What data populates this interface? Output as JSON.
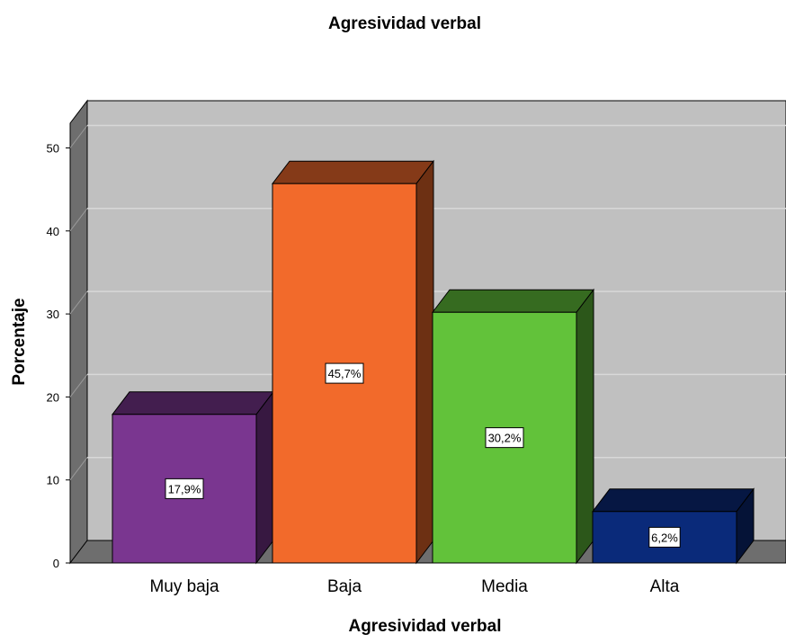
{
  "chart_data": {
    "type": "bar",
    "title": "Agresividad verbal",
    "xlabel": "Agresividad verbal",
    "ylabel": "Porcentaje",
    "categories": [
      "Muy baja",
      "Baja",
      "Media",
      "Alta"
    ],
    "values": [
      17.9,
      45.7,
      30.2,
      6.2
    ],
    "data_labels": [
      "17,9%",
      "45,7%",
      "30,2%",
      "6,2%"
    ],
    "colors": [
      "#7a3690",
      "#f26a2b",
      "#62c23a",
      "#0a2a7a"
    ],
    "yticks": [
      0,
      10,
      20,
      30,
      40,
      50
    ],
    "ylim": [
      0,
      50
    ],
    "grid": true,
    "style": "3d-bar",
    "background_color": "#c0c0c0"
  }
}
